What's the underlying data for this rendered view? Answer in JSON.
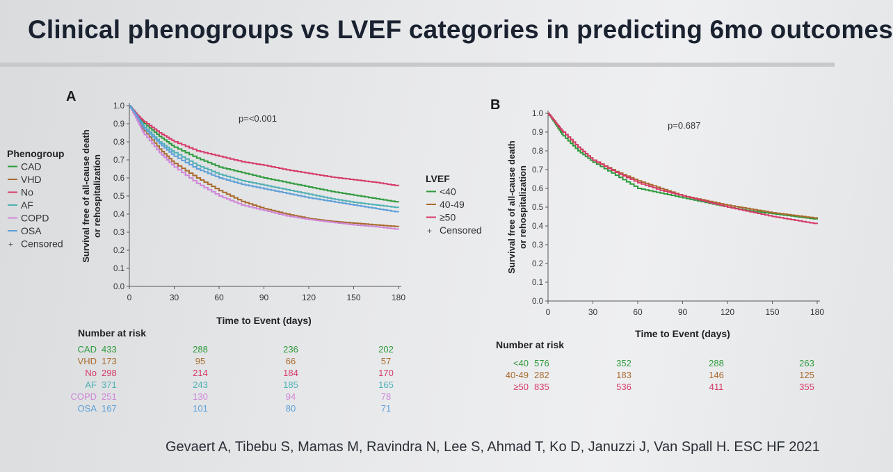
{
  "title": "Clinical phenogroups vs LVEF categories in predicting 6mo outcomes",
  "citation": "Gevaert A, Tibebu S, Mamas M, Ravindra N, Lee S, Ahmad T, Ko D, Januzzi J, Van Spall H. ESC HF 2021",
  "chart_data": [
    {
      "type": "line",
      "panel": "A",
      "annotation": "p=<0.001",
      "xlabel": "Time to Event (days)",
      "ylabel": "Survival free of all-cause death or rehospitalization",
      "xlim": [
        0,
        180
      ],
      "ylim": [
        0,
        1
      ],
      "xticks": [
        0,
        30,
        60,
        90,
        120,
        150,
        180
      ],
      "yticks": [
        "0.0",
        "0.1",
        "0.2",
        "0.3",
        "0.4",
        "0.5",
        "0.6",
        "0.7",
        "0.8",
        "0.9",
        "1.0"
      ],
      "legend_title": "Phenogroup",
      "legend_position": "left",
      "censored_label": "Censored",
      "series": [
        {
          "name": "CAD",
          "color": "#2e9a3c",
          "x": [
            0,
            5,
            10,
            20,
            30,
            45,
            60,
            75,
            90,
            105,
            120,
            135,
            150,
            165,
            180
          ],
          "y": [
            1.0,
            0.95,
            0.9,
            0.83,
            0.77,
            0.71,
            0.66,
            0.63,
            0.6,
            0.575,
            0.55,
            0.525,
            0.505,
            0.485,
            0.465
          ]
        },
        {
          "name": "VHD",
          "color": "#a86a2c",
          "x": [
            0,
            5,
            10,
            20,
            30,
            45,
            60,
            75,
            90,
            105,
            120,
            135,
            150,
            165,
            180
          ],
          "y": [
            1.0,
            0.93,
            0.86,
            0.76,
            0.68,
            0.6,
            0.53,
            0.47,
            0.43,
            0.4,
            0.375,
            0.36,
            0.35,
            0.34,
            0.33
          ]
        },
        {
          "name": "No",
          "color": "#d63a68",
          "x": [
            0,
            5,
            10,
            20,
            30,
            45,
            60,
            75,
            90,
            105,
            120,
            135,
            150,
            165,
            180
          ],
          "y": [
            1.0,
            0.95,
            0.91,
            0.85,
            0.8,
            0.75,
            0.72,
            0.69,
            0.67,
            0.645,
            0.625,
            0.605,
            0.59,
            0.575,
            0.555
          ]
        },
        {
          "name": "AF",
          "color": "#4fb0b4",
          "x": [
            0,
            5,
            10,
            20,
            30,
            45,
            60,
            75,
            90,
            105,
            120,
            135,
            150,
            165,
            180
          ],
          "y": [
            1.0,
            0.94,
            0.88,
            0.8,
            0.74,
            0.67,
            0.62,
            0.585,
            0.56,
            0.535,
            0.51,
            0.485,
            0.465,
            0.45,
            0.435
          ]
        },
        {
          "name": "COPD",
          "color": "#cf86d8",
          "x": [
            0,
            5,
            10,
            20,
            30,
            45,
            60,
            75,
            90,
            105,
            120,
            135,
            150,
            165,
            180
          ],
          "y": [
            1.0,
            0.92,
            0.84,
            0.74,
            0.66,
            0.57,
            0.5,
            0.45,
            0.42,
            0.39,
            0.37,
            0.355,
            0.34,
            0.33,
            0.315
          ]
        },
        {
          "name": "OSA",
          "color": "#5d9fd8",
          "x": [
            0,
            5,
            10,
            20,
            30,
            45,
            60,
            75,
            90,
            105,
            120,
            135,
            150,
            165,
            180
          ],
          "y": [
            1.0,
            0.94,
            0.87,
            0.79,
            0.72,
            0.65,
            0.6,
            0.565,
            0.54,
            0.515,
            0.49,
            0.47,
            0.45,
            0.43,
            0.41
          ]
        }
      ],
      "risk_table": {
        "label": "Number at risk",
        "times": [
          0,
          60,
          120,
          180
        ],
        "rows": [
          {
            "name": "CAD",
            "values": [
              "433",
              "288",
              "236",
              "202"
            ]
          },
          {
            "name": "VHD",
            "values": [
              "173",
              "95",
              "66",
              "57"
            ]
          },
          {
            "name": "No",
            "values": [
              "298",
              "214",
              "184",
              "170"
            ]
          },
          {
            "name": "AF",
            "values": [
              "371",
              "243",
              "185",
              "165"
            ]
          },
          {
            "name": "COPD",
            "values": [
              "251",
              "130",
              "94",
              "78"
            ]
          },
          {
            "name": "OSA",
            "values": [
              "167",
              "101",
              "80",
              "71"
            ]
          }
        ]
      }
    },
    {
      "type": "line",
      "panel": "B",
      "annotation": "p=0.687",
      "xlabel": "Time to Event (days)",
      "ylabel": "Survival free of all-cause death or rehospitalization",
      "xlim": [
        0,
        180
      ],
      "ylim": [
        0,
        1
      ],
      "xticks": [
        0,
        30,
        60,
        90,
        120,
        150,
        180
      ],
      "yticks": [
        "0.0",
        "0.1",
        "0.2",
        "0.3",
        "0.4",
        "0.5",
        "0.6",
        "0.7",
        "0.8",
        "0.9",
        "1.0"
      ],
      "legend_title": "LVEF",
      "legend_position": "left",
      "censored_label": "Censored",
      "series": [
        {
          "name": "<40",
          "color": "#2e9a3c",
          "x": [
            0,
            5,
            10,
            20,
            30,
            45,
            60,
            75,
            90,
            105,
            120,
            135,
            150,
            165,
            180
          ],
          "y": [
            1.0,
            0.94,
            0.88,
            0.8,
            0.74,
            0.67,
            0.6,
            0.575,
            0.55,
            0.525,
            0.5,
            0.48,
            0.465,
            0.45,
            0.435
          ]
        },
        {
          "name": "40-49",
          "color": "#a86a2c",
          "x": [
            0,
            5,
            10,
            20,
            30,
            45,
            60,
            75,
            90,
            105,
            120,
            135,
            150,
            165,
            180
          ],
          "y": [
            1.0,
            0.95,
            0.9,
            0.82,
            0.75,
            0.69,
            0.64,
            0.6,
            0.56,
            0.535,
            0.51,
            0.49,
            0.47,
            0.455,
            0.44
          ]
        },
        {
          "name": "≥50",
          "color": "#d63a68",
          "x": [
            0,
            5,
            10,
            20,
            30,
            45,
            60,
            75,
            90,
            105,
            120,
            135,
            150,
            165,
            180
          ],
          "y": [
            1.0,
            0.95,
            0.9,
            0.82,
            0.75,
            0.685,
            0.63,
            0.59,
            0.56,
            0.53,
            0.5,
            0.475,
            0.45,
            0.43,
            0.41
          ]
        }
      ],
      "risk_table": {
        "label": "Number at risk",
        "times": [
          0,
          60,
          120,
          180
        ],
        "rows": [
          {
            "name": "<40",
            "values": [
              "576",
              "352",
              "288",
              "263"
            ]
          },
          {
            "name": "40-49",
            "values": [
              "282",
              "183",
              "146",
              "125"
            ]
          },
          {
            "name": "≥50",
            "values": [
              "835",
              "536",
              "411",
              "355"
            ]
          }
        ]
      }
    }
  ]
}
